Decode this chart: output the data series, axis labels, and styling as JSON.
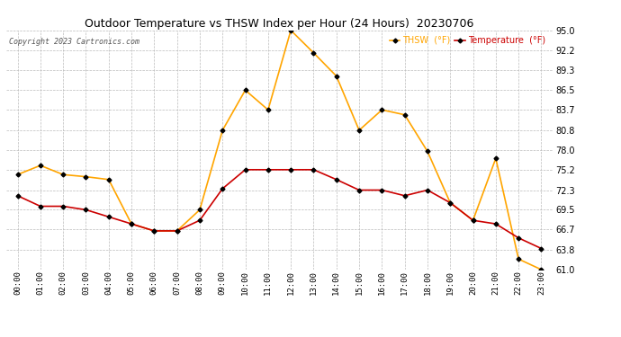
{
  "title": "Outdoor Temperature vs THSW Index per Hour (24 Hours)  20230706",
  "copyright": "Copyright 2023 Cartronics.com",
  "legend_thsw": "THSW  (°F)",
  "legend_temp": "Temperature  (°F)",
  "hours": [
    "00:00",
    "01:00",
    "02:00",
    "03:00",
    "04:00",
    "05:00",
    "06:00",
    "07:00",
    "08:00",
    "09:00",
    "10:00",
    "11:00",
    "12:00",
    "13:00",
    "14:00",
    "15:00",
    "16:00",
    "17:00",
    "18:00",
    "19:00",
    "20:00",
    "21:00",
    "22:00",
    "23:00"
  ],
  "thsw": [
    74.5,
    75.8,
    74.5,
    74.2,
    73.8,
    67.5,
    66.5,
    66.5,
    69.5,
    80.8,
    86.5,
    83.7,
    95.0,
    91.8,
    88.5,
    80.8,
    83.7,
    83.0,
    77.8,
    70.5,
    68.0,
    76.8,
    62.5,
    61.0
  ],
  "temp": [
    71.5,
    70.0,
    70.0,
    69.5,
    68.5,
    67.5,
    66.5,
    66.5,
    68.0,
    72.5,
    75.2,
    75.2,
    75.2,
    75.2,
    73.8,
    72.3,
    72.3,
    71.5,
    72.3,
    70.5,
    68.0,
    67.5,
    65.5,
    64.0
  ],
  "thsw_color": "#FFA500",
  "temp_color": "#CC0000",
  "bg_color": "#FFFFFF",
  "grid_color": "#BBBBBB",
  "title_color": "#000000",
  "copyright_color": "#555555",
  "ylim_min": 61.0,
  "ylim_max": 95.0,
  "yticks": [
    61.0,
    63.8,
    66.7,
    69.5,
    72.3,
    75.2,
    78.0,
    80.8,
    83.7,
    86.5,
    89.3,
    92.2,
    95.0
  ],
  "marker": "D",
  "marker_size": 2.5,
  "marker_color": "#000000",
  "line_width": 1.2
}
